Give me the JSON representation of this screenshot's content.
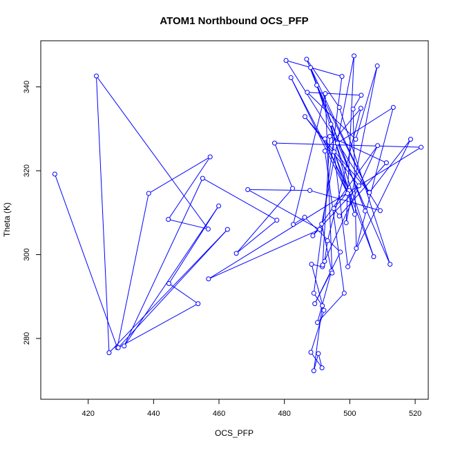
{
  "chart_data": {
    "type": "line",
    "title": "ATOM1 Northbound OCS_PFP",
    "xlabel": "OCS_PFP",
    "ylabel": "Theta (K)",
    "xlim": [
      405.5,
      524
    ],
    "ylim": [
      265.5,
      351
    ],
    "xticks": [
      420,
      440,
      460,
      480,
      500,
      520
    ],
    "yticks": [
      280,
      300,
      320,
      340
    ],
    "grid": false,
    "line_color": "#0000ff",
    "marker": "open-circle",
    "points": [
      [
        409.8,
        319.2
      ],
      [
        428.9,
        277.8
      ],
      [
        438.5,
        314.6
      ],
      [
        457.3,
        323.3
      ],
      [
        444.5,
        308.4
      ],
      [
        456.7,
        306.1
      ],
      [
        422.5,
        342.6
      ],
      [
        426.4,
        276.6
      ],
      [
        462.6,
        306.0
      ],
      [
        429.2,
        277.8
      ],
      [
        453.6,
        288.3
      ],
      [
        444.7,
        293.1
      ],
      [
        459.9,
        311.6
      ],
      [
        431.0,
        278.2
      ],
      [
        455.0,
        318.2
      ],
      [
        477.7,
        308.2
      ],
      [
        465.3,
        300.3
      ],
      [
        482.5,
        315.8
      ],
      [
        477.0,
        326.6
      ],
      [
        521.8,
        325.6
      ],
      [
        456.8,
        294.2
      ],
      [
        490.8,
        306.0
      ],
      [
        468.8,
        315.5
      ],
      [
        487.8,
        315.3
      ],
      [
        509.3,
        310.5
      ],
      [
        480.5,
        346.3
      ],
      [
        497.6,
        342.5
      ],
      [
        489.0,
        290.8
      ],
      [
        491.6,
        287.8
      ],
      [
        489.0,
        272.3
      ],
      [
        490.4,
        276.4
      ],
      [
        491.5,
        273.0
      ],
      [
        488.1,
        276.7
      ],
      [
        492.1,
        286.7
      ],
      [
        488.3,
        297.7
      ],
      [
        491.6,
        297.1
      ],
      [
        492.3,
        298.4
      ],
      [
        493.2,
        303.3
      ],
      [
        503.4,
        334.9
      ],
      [
        492.4,
        324.7
      ],
      [
        498.3,
        290.8
      ],
      [
        490.1,
        283.8
      ],
      [
        494.4,
        296.1
      ],
      [
        489.3,
        288.3
      ],
      [
        497.1,
        300.6
      ],
      [
        486.2,
        308.9
      ],
      [
        482.7,
        307.2
      ],
      [
        492.5,
        338.4
      ],
      [
        494.6,
        295.6
      ],
      [
        491.4,
        307.3
      ],
      [
        501.3,
        347.4
      ],
      [
        498.9,
        307.6
      ],
      [
        508.4,
        345.0
      ],
      [
        501.8,
        327.5
      ],
      [
        487.0,
        338.7
      ],
      [
        503.5,
        338.0
      ],
      [
        501.0,
        334.7
      ],
      [
        502.0,
        301.5
      ],
      [
        513.3,
        335.1
      ],
      [
        496.2,
        326.6
      ],
      [
        512.3,
        297.7
      ],
      [
        496.8,
        335.1
      ],
      [
        486.8,
        346.6
      ],
      [
        504.7,
        310.4
      ],
      [
        488.0,
        344.6
      ],
      [
        505.8,
        314.9
      ],
      [
        489.9,
        340.4
      ],
      [
        507.3,
        299.5
      ],
      [
        495.2,
        324.5
      ],
      [
        501.5,
        309.6
      ],
      [
        494.2,
        331.1
      ],
      [
        499.4,
        297.1
      ],
      [
        518.6,
        327.5
      ],
      [
        506.0,
        314.8
      ],
      [
        486.3,
        332.9
      ],
      [
        502.8,
        316.4
      ],
      [
        488.7,
        304.5
      ],
      [
        508.5,
        326.0
      ],
      [
        491.7,
        297.5
      ],
      [
        493.9,
        328.2
      ],
      [
        511.2,
        321.9
      ],
      [
        496.8,
        309.2
      ],
      [
        495.1,
        311.0
      ],
      [
        499.8,
        315.3
      ],
      [
        482.0,
        342.2
      ],
      [
        499.3,
        314.6
      ],
      [
        492.4,
        327.6
      ]
    ]
  }
}
